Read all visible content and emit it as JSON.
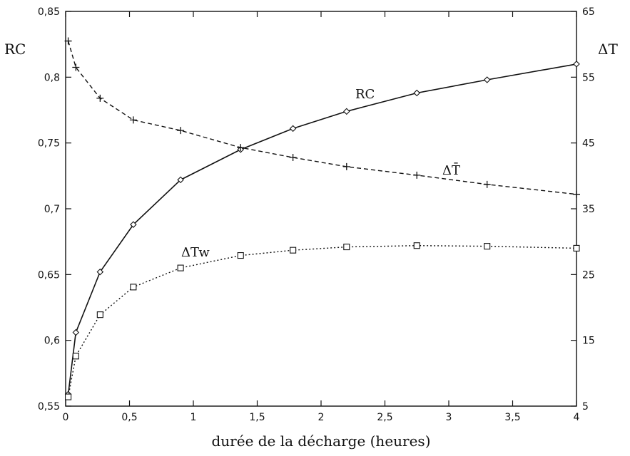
{
  "chart_data": {
    "type": "line",
    "xlabel": "durée de la décharge (heures)",
    "ylabel_left": "RC",
    "ylabel_right": "ΔT",
    "xlim": [
      0,
      4
    ],
    "ylim_left": [
      0.55,
      0.85
    ],
    "ylim_right": [
      5,
      65
    ],
    "x_ticks": [
      "0",
      "0,5",
      "1",
      "1,5",
      "2",
      "2,5",
      "3",
      "3,5",
      "4"
    ],
    "y_left_ticks": [
      "0,55",
      "0,6",
      "0,65",
      "0,7",
      "0,75",
      "0,8",
      "0,85"
    ],
    "y_right_ticks": [
      "5",
      "15",
      "25",
      "35",
      "45",
      "55",
      "65"
    ],
    "grid": false,
    "series": [
      {
        "name": "RC",
        "label": "RC",
        "axis": "left",
        "line_style": "solid",
        "marker": "diamond",
        "x": [
          0.02,
          0.08,
          0.27,
          0.53,
          0.9,
          1.37,
          1.78,
          2.2,
          2.75,
          3.3,
          4.0
        ],
        "y": [
          0.559,
          0.606,
          0.652,
          0.688,
          0.722,
          0.745,
          0.761,
          0.774,
          0.788,
          0.798,
          0.81
        ]
      },
      {
        "name": "ΔT̄",
        "label": "ΔT̄",
        "axis": "right",
        "line_style": "dashed",
        "marker": "plus",
        "x": [
          0.02,
          0.08,
          0.27,
          0.53,
          0.9,
          1.37,
          1.78,
          2.2,
          2.75,
          3.3,
          4.0
        ],
        "y": [
          60.5,
          56.5,
          51.8,
          48.5,
          46.9,
          44.3,
          42.8,
          41.4,
          40.1,
          38.7,
          37.2
        ]
      },
      {
        "name": "ΔTw",
        "label": "ΔTw",
        "axis": "right",
        "line_style": "dotted",
        "marker": "square",
        "x": [
          0.02,
          0.08,
          0.27,
          0.53,
          0.9,
          1.37,
          1.78,
          2.2,
          2.75,
          3.3,
          4.0
        ],
        "y": [
          6.4,
          12.6,
          18.9,
          23.1,
          26.0,
          27.9,
          28.7,
          29.2,
          29.4,
          29.3,
          29.0
        ]
      }
    ]
  }
}
